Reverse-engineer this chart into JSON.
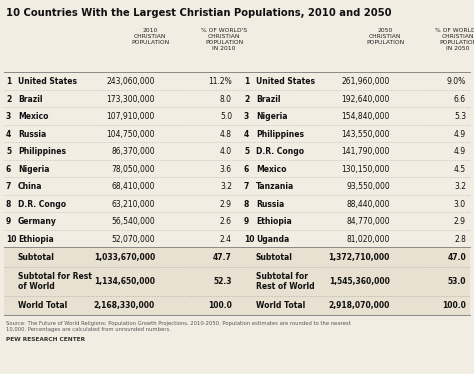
{
  "title": "10 Countries With the Largest Christian Populations, 2010 and 2050",
  "bg_color": "#f2ede3",
  "shade_color": "#e8e0d0",
  "line_color_solid": "#999999",
  "line_color_dash": "#cccccc",
  "rows_2010": [
    [
      "1",
      "United States",
      "243,060,000",
      "11.2%"
    ],
    [
      "2",
      "Brazil",
      "173,300,000",
      "8.0"
    ],
    [
      "3",
      "Mexico",
      "107,910,000",
      "5.0"
    ],
    [
      "4",
      "Russia",
      "104,750,000",
      "4.8"
    ],
    [
      "5",
      "Philippines",
      "86,370,000",
      "4.0"
    ],
    [
      "6",
      "Nigeria",
      "78,050,000",
      "3.6"
    ],
    [
      "7",
      "China",
      "68,410,000",
      "3.2"
    ],
    [
      "8",
      "D.R. Congo",
      "63,210,000",
      "2.9"
    ],
    [
      "9",
      "Germany",
      "56,540,000",
      "2.6"
    ],
    [
      "10",
      "Ethiopia",
      "52,070,000",
      "2.4"
    ]
  ],
  "rows_2050": [
    [
      "1",
      "United States",
      "261,960,000",
      "9.0%"
    ],
    [
      "2",
      "Brazil",
      "192,640,000",
      "6.6"
    ],
    [
      "3",
      "Nigeria",
      "154,840,000",
      "5.3"
    ],
    [
      "4",
      "Philippines",
      "143,550,000",
      "4.9"
    ],
    [
      "5",
      "D.R. Congo",
      "141,790,000",
      "4.9"
    ],
    [
      "6",
      "Mexico",
      "130,150,000",
      "4.5"
    ],
    [
      "7",
      "Tanzania",
      "93,550,000",
      "3.2"
    ],
    [
      "8",
      "Russia",
      "88,440,000",
      "3.0"
    ],
    [
      "9",
      "Ethiopia",
      "84,770,000",
      "2.9"
    ],
    [
      "10",
      "Uganda",
      "81,020,000",
      "2.8"
    ]
  ],
  "source_text": "Source: The Future of World Religions: Population Growth Projections, 2010-2050. Population estimates are rounded to the nearest\n10,000. Percentages are calculated from unrounded numbers.",
  "credit": "PEW RESEARCH CENTER"
}
